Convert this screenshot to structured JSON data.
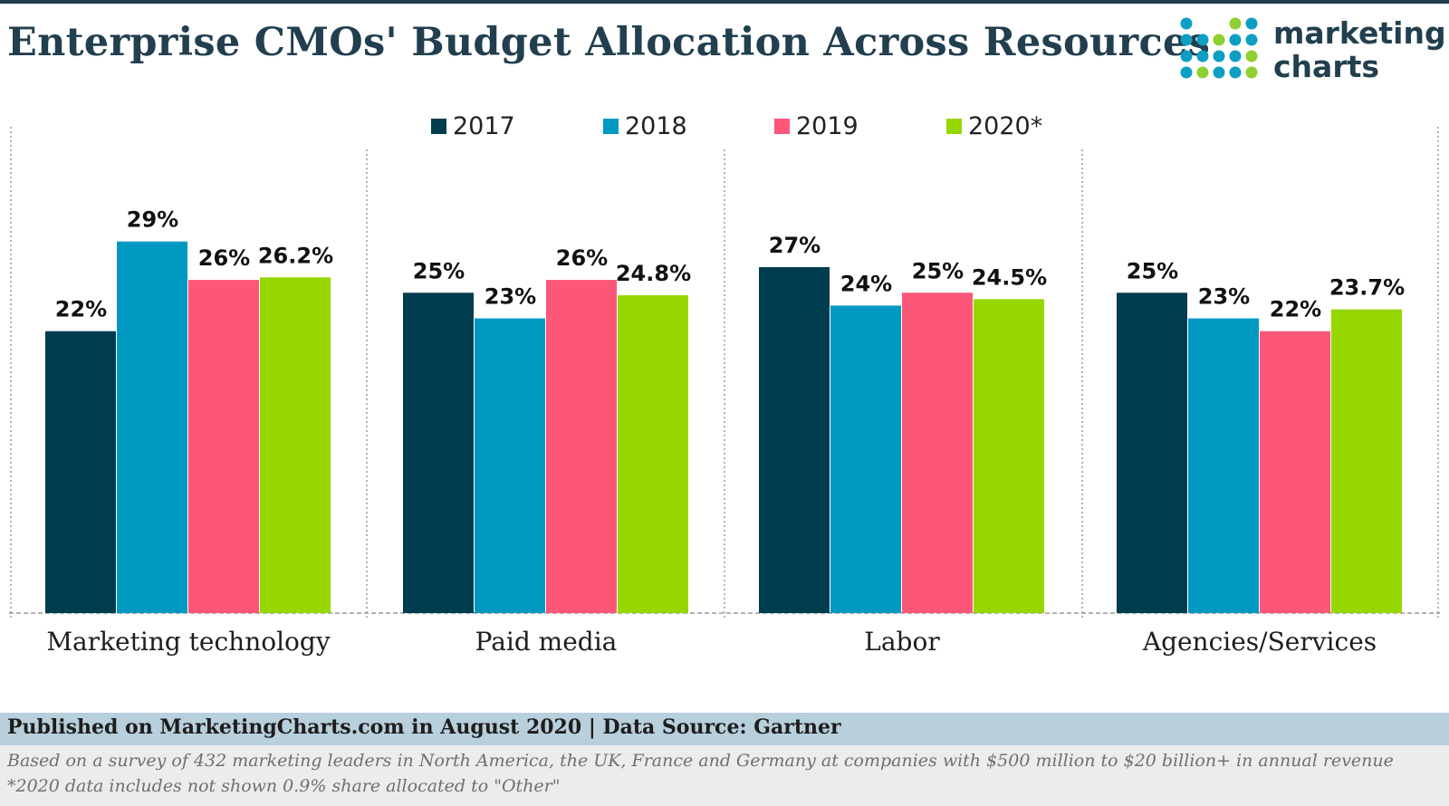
{
  "title": "Enterprise CMOs' Budget Allocation Across Resources",
  "logo": {
    "line1": "marketing",
    "line2": "charts",
    "dot_colors": [
      "#0e9ec2",
      "#8fcf2f",
      "#213f4e"
    ]
  },
  "colors": {
    "2017": "#003d4f",
    "2018": "#0099c2",
    "2019": "#fc5679",
    "2020*": "#97d700",
    "title": "#213f4e",
    "footer_bar": "#b8cfdc"
  },
  "chart_data": {
    "type": "bar",
    "title": "Enterprise CMOs' Budget Allocation Across Resources",
    "categories": [
      "Marketing technology",
      "Paid media",
      "Labor",
      "Agencies/Services"
    ],
    "series": [
      {
        "name": "2017",
        "values": [
          22,
          25,
          27,
          25
        ],
        "labels": [
          "22%",
          "25%",
          "27%",
          "25%"
        ]
      },
      {
        "name": "2018",
        "values": [
          29,
          23,
          24,
          23
        ],
        "labels": [
          "29%",
          "23%",
          "24%",
          "23%"
        ]
      },
      {
        "name": "2019",
        "values": [
          26,
          26,
          25,
          22
        ],
        "labels": [
          "26%",
          "26%",
          "25%",
          "22%"
        ]
      },
      {
        "name": "2020*",
        "values": [
          26.2,
          24.8,
          24.5,
          23.7
        ],
        "labels": [
          "26.2%",
          "24.8%",
          "24.5%",
          "23.7%"
        ]
      }
    ],
    "ylim": [
      0,
      33
    ],
    "xlabel": "",
    "ylabel": "",
    "grid": false,
    "legend": "top"
  },
  "footer": {
    "source": "Published on MarketingCharts.com in August 2020 | Data Source: Gartner",
    "note": "Based on a survey of 432 marketing leaders in North America, the UK, France and Germany at companies with $500 million to $20 billion+ in annual revenue  *2020 data includes not shown 0.9% share allocated to \"Other\""
  }
}
